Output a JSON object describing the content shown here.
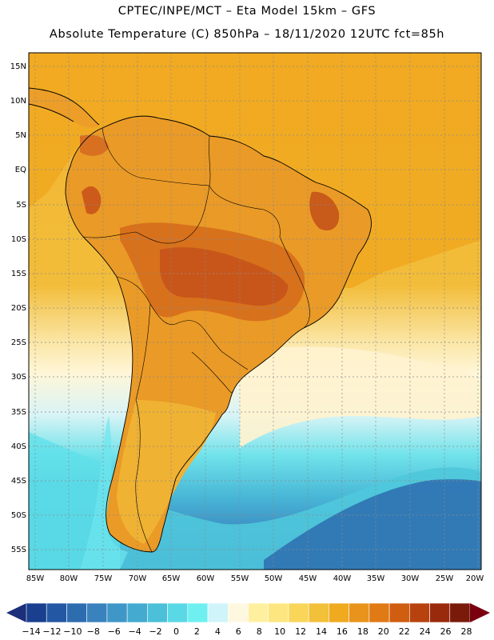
{
  "header": {
    "line1": "CPTEC/INPE/MCT –  Eta Model 15km – GFS",
    "line2": "Absolute Temperature (C) 850hPa – 18/11/2020 12UTC fct=85h"
  },
  "lat_labels": [
    "15N",
    "10N",
    "5N",
    "EQ",
    "5S",
    "10S",
    "15S",
    "20S",
    "25S",
    "30S",
    "35S",
    "40S",
    "45S",
    "50S",
    "55S"
  ],
  "lon_labels": [
    "85W",
    "80W",
    "75W",
    "70W",
    "65W",
    "60W",
    "55W",
    "50W",
    "45W",
    "40W",
    "35W",
    "30W",
    "25W",
    "20W"
  ],
  "colorbar": {
    "labels": [
      "-14",
      "-12",
      "-10",
      "-8",
      "-6",
      "-4",
      "-2",
      "0",
      "2",
      "4",
      "6",
      "8",
      "10",
      "12",
      "14",
      "16",
      "18",
      "20",
      "22",
      "24",
      "26",
      "28"
    ],
    "colors": [
      "#1a3f8f",
      "#2457a3",
      "#2e6cb0",
      "#3a82bd",
      "#3f97c8",
      "#44aacf",
      "#4cc0d8",
      "#5bd8e6",
      "#6ff0f0",
      "#cff4fa",
      "#fff8e0",
      "#fff0a0",
      "#fde680",
      "#f9d65a",
      "#f3c03a",
      "#f0aa20",
      "#e8941c",
      "#e07a14",
      "#d05e10",
      "#b8420e",
      "#9a2a0c",
      "#7a1a0a"
    ],
    "low_color": "#1b2f7a",
    "high_color": "#7a0010"
  }
}
